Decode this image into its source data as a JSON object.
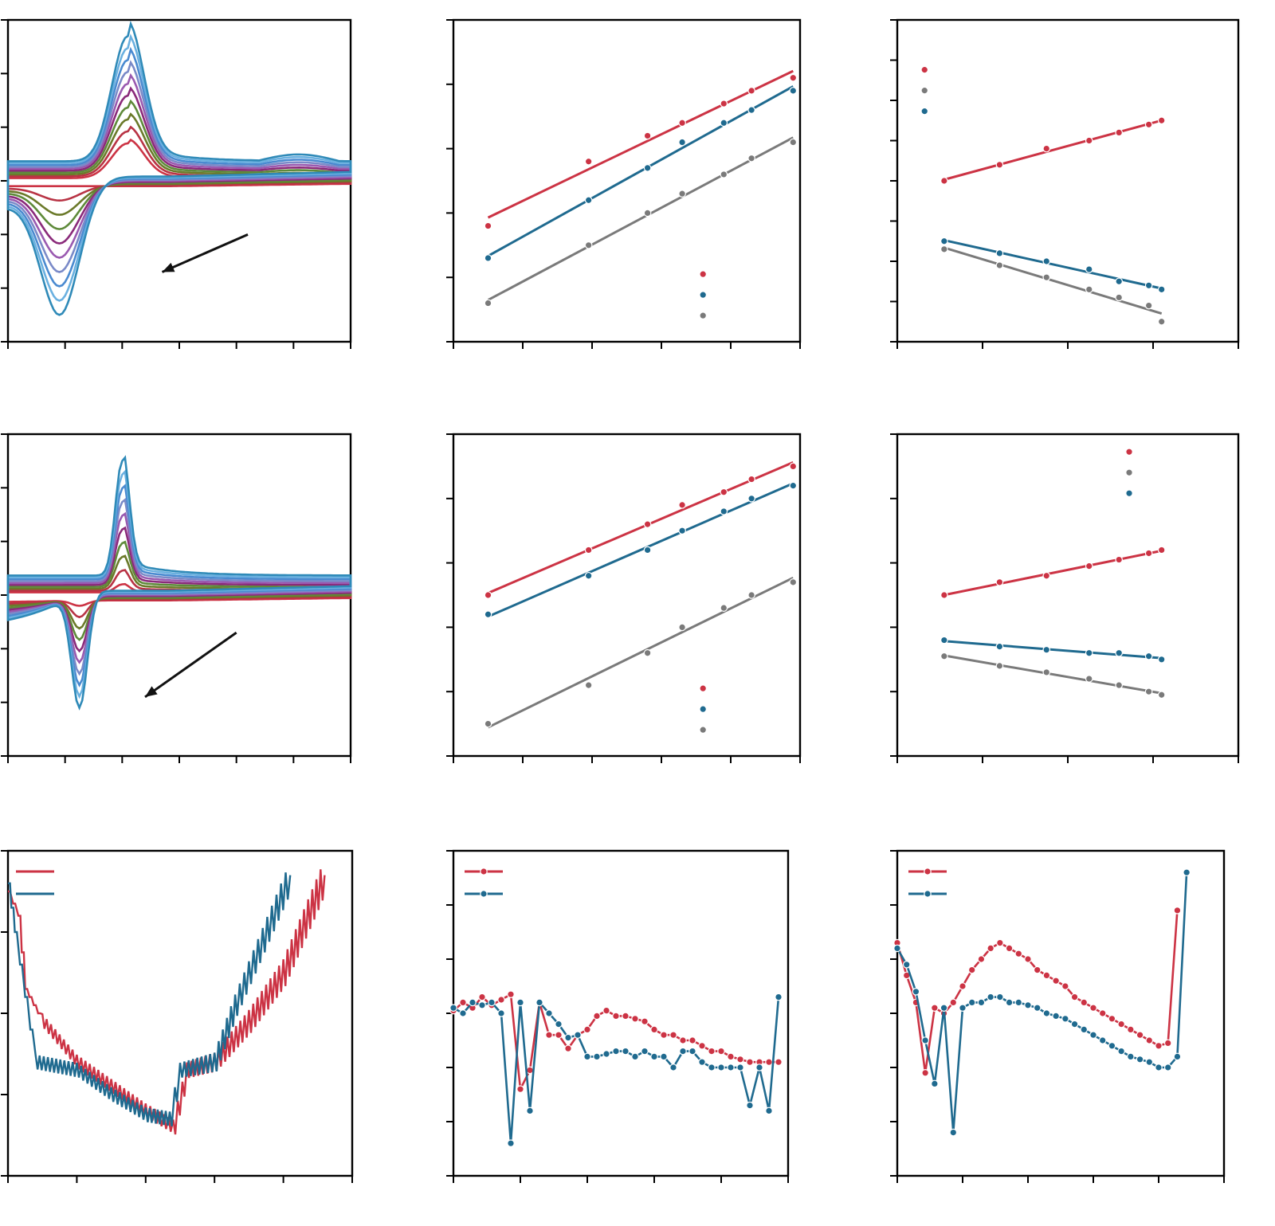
{
  "colors": {
    "red": "#cc3344",
    "blue": "#1f6a8f",
    "gray": "#7a7a7a",
    "arrow": "#111111",
    "cv_ramp": [
      "#cc3344",
      "#b83344",
      "#6b7a2a",
      "#5e8a3a",
      "#8a2a7a",
      "#9a5ab0",
      "#7a8ac8",
      "#4a8ad0",
      "#6ab0e0",
      "#2f8ab8"
    ]
  },
  "chart_data": [
    {
      "type": "line",
      "id": "cv-top",
      "xlim": [
        0,
        6
      ],
      "ylim": [
        0,
        6
      ],
      "scan_count": 10,
      "peak_anodic": {
        "x": 2.1,
        "y_min": 3.7,
        "y_max": 5.7
      },
      "peak_cathodic": {
        "x": 0.9,
        "y_min": 2.9,
        "y_max": 0.5
      },
      "arrow": {
        "from": [
          4.2,
          2.0
        ],
        "to": [
          2.7,
          1.3
        ]
      }
    },
    {
      "type": "scatter",
      "id": "linear-top-mid",
      "xlim": [
        0,
        5
      ],
      "ylim": [
        0,
        5
      ],
      "series": [
        {
          "color_key": "red",
          "x": [
            0.5,
            1.95,
            2.8,
            3.3,
            3.9,
            4.3,
            4.9
          ],
          "y": [
            1.8,
            2.8,
            3.2,
            3.4,
            3.7,
            3.9,
            4.1
          ]
        },
        {
          "color_key": "blue",
          "x": [
            0.5,
            1.95,
            2.8,
            3.3,
            3.9,
            4.3,
            4.9
          ],
          "y": [
            1.3,
            2.2,
            2.7,
            3.1,
            3.4,
            3.6,
            3.9
          ]
        },
        {
          "color_key": "gray",
          "x": [
            0.5,
            1.95,
            2.8,
            3.3,
            3.9,
            4.3,
            4.9
          ],
          "y": [
            0.6,
            1.5,
            2.0,
            2.3,
            2.6,
            2.85,
            3.1
          ]
        }
      ],
      "legend_markers": [
        "red",
        "blue",
        "gray"
      ],
      "legend_position": "bottom-right"
    },
    {
      "type": "scatter",
      "id": "linear-top-right",
      "xlim": [
        0,
        4
      ],
      "ylim": [
        0,
        8
      ],
      "series": [
        {
          "color_key": "red",
          "x": [
            0.55,
            1.2,
            1.75,
            2.25,
            2.6,
            2.95,
            3.1
          ],
          "y": [
            4.0,
            4.4,
            4.8,
            5.0,
            5.2,
            5.4,
            5.5
          ]
        },
        {
          "color_key": "blue",
          "x": [
            0.55,
            1.2,
            1.75,
            2.25,
            2.6,
            2.95,
            3.1
          ],
          "y": [
            2.5,
            2.2,
            2.0,
            1.8,
            1.5,
            1.4,
            1.3
          ]
        },
        {
          "color_key": "gray",
          "x": [
            0.55,
            1.2,
            1.75,
            2.25,
            2.6,
            2.95,
            3.1
          ],
          "y": [
            2.3,
            1.9,
            1.6,
            1.3,
            1.1,
            0.9,
            0.5
          ]
        }
      ],
      "legend_markers": [
        "red",
        "gray",
        "blue"
      ],
      "legend_position": "top-left"
    },
    {
      "type": "line",
      "id": "cv-middle",
      "xlim": [
        0,
        6
      ],
      "ylim": [
        0,
        6
      ],
      "scan_count": 10,
      "peak_anodic": {
        "x": 2.0,
        "y_min": 3.2,
        "y_max": 5.5
      },
      "peak_cathodic": {
        "x": 1.25,
        "y_min": 2.8,
        "y_max": 0.9
      },
      "arrow": {
        "from": [
          4.0,
          2.3
        ],
        "to": [
          2.4,
          1.1
        ]
      }
    },
    {
      "type": "scatter",
      "id": "linear-mid-mid",
      "xlim": [
        0,
        5
      ],
      "ylim": [
        0,
        5
      ],
      "series": [
        {
          "color_key": "red",
          "x": [
            0.5,
            1.95,
            2.8,
            3.3,
            3.9,
            4.3,
            4.9
          ],
          "y": [
            2.5,
            3.2,
            3.6,
            3.9,
            4.1,
            4.3,
            4.5
          ]
        },
        {
          "color_key": "blue",
          "x": [
            0.5,
            1.95,
            2.8,
            3.3,
            3.9,
            4.3,
            4.9
          ],
          "y": [
            2.2,
            2.8,
            3.2,
            3.5,
            3.8,
            4.0,
            4.2
          ]
        },
        {
          "color_key": "gray",
          "x": [
            0.5,
            1.95,
            2.8,
            3.3,
            3.9,
            4.3,
            4.9
          ],
          "y": [
            0.5,
            1.1,
            1.6,
            2.0,
            2.3,
            2.5,
            2.7
          ]
        }
      ],
      "legend_markers": [
        "red",
        "blue",
        "gray"
      ],
      "legend_position": "bottom-right"
    },
    {
      "type": "scatter",
      "id": "linear-mid-right",
      "xlim": [
        0,
        4
      ],
      "ylim": [
        0,
        5
      ],
      "series": [
        {
          "color_key": "red",
          "x": [
            0.55,
            1.2,
            1.75,
            2.25,
            2.6,
            2.95,
            3.1
          ],
          "y": [
            2.5,
            2.7,
            2.8,
            2.95,
            3.05,
            3.15,
            3.2
          ]
        },
        {
          "color_key": "blue",
          "x": [
            0.55,
            1.2,
            1.75,
            2.25,
            2.6,
            2.95,
            3.1
          ],
          "y": [
            1.8,
            1.7,
            1.65,
            1.6,
            1.6,
            1.55,
            1.5
          ]
        },
        {
          "color_key": "gray",
          "x": [
            0.55,
            1.2,
            1.75,
            2.25,
            2.6,
            2.95,
            3.1
          ],
          "y": [
            1.55,
            1.4,
            1.3,
            1.2,
            1.1,
            1.0,
            0.95
          ]
        }
      ],
      "legend_markers": [
        "red",
        "gray",
        "blue"
      ],
      "legend_position": "top-right"
    },
    {
      "type": "line",
      "id": "sawtooth-bottom-left",
      "xlim": [
        0,
        5
      ],
      "ylim": [
        0,
        4
      ],
      "series": [
        {
          "color_key": "red",
          "x": [
            0.0,
            0.15,
            0.25,
            0.5,
            1.0,
            1.5,
            2.0,
            2.4,
            2.6,
            3.0,
            3.5,
            4.0,
            4.6
          ],
          "y": [
            3.5,
            3.2,
            2.3,
            1.9,
            1.4,
            1.1,
            0.8,
            0.6,
            1.3,
            1.4,
            1.9,
            2.5,
            3.7
          ]
        },
        {
          "color_key": "blue",
          "x": [
            0.0,
            0.1,
            0.25,
            0.4,
            1.0,
            1.5,
            2.0,
            2.35,
            2.5,
            3.0,
            3.3,
            3.7,
            4.1
          ],
          "y": [
            3.6,
            3.0,
            2.2,
            1.4,
            1.3,
            1.0,
            0.75,
            0.7,
            1.3,
            1.4,
            2.1,
            2.9,
            3.7
          ]
        }
      ],
      "legend_markers": [
        "red",
        "blue"
      ],
      "legend_position": "top-left"
    },
    {
      "type": "line",
      "id": "cycle-bottom-mid",
      "xlim": [
        0,
        35
      ],
      "ylim": [
        0,
        6
      ],
      "series": [
        {
          "color_key": "red",
          "x": [
            0,
            1,
            2,
            3,
            4,
            5,
            6,
            7,
            8,
            9,
            10,
            11,
            12,
            13,
            14,
            15,
            16,
            17,
            18,
            19,
            20,
            21,
            22,
            23,
            24,
            25,
            26,
            27,
            28,
            29,
            30,
            31,
            32,
            33,
            34
          ],
          "y": [
            3.05,
            3.2,
            3.1,
            3.3,
            3.15,
            3.25,
            3.35,
            1.6,
            1.95,
            3.2,
            2.6,
            2.6,
            2.35,
            2.6,
            2.7,
            2.95,
            3.05,
            2.95,
            2.95,
            2.9,
            2.85,
            2.7,
            2.6,
            2.6,
            2.5,
            2.5,
            2.4,
            2.3,
            2.3,
            2.2,
            2.15,
            2.1,
            2.1,
            2.1,
            2.1
          ]
        },
        {
          "color_key": "blue",
          "x": [
            0,
            1,
            2,
            3,
            4,
            5,
            6,
            7,
            8,
            9,
            10,
            11,
            12,
            13,
            14,
            15,
            16,
            17,
            18,
            19,
            20,
            21,
            22,
            23,
            24,
            25,
            26,
            27,
            28,
            29,
            30,
            31,
            32,
            33,
            34
          ],
          "y": [
            3.1,
            3.0,
            3.2,
            3.15,
            3.2,
            3.0,
            0.6,
            3.2,
            1.2,
            3.2,
            3.0,
            2.8,
            2.55,
            2.6,
            2.2,
            2.2,
            2.25,
            2.3,
            2.3,
            2.2,
            2.3,
            2.2,
            2.2,
            2.0,
            2.3,
            2.3,
            2.1,
            2.0,
            2.0,
            2.0,
            2.0,
            1.3,
            2.0,
            1.2,
            3.3
          ]
        }
      ],
      "legend_markers": [
        "red",
        "blue"
      ],
      "legend_position": "top-left"
    },
    {
      "type": "line",
      "id": "cycle-bottom-right",
      "xlim": [
        0,
        35
      ],
      "ylim": [
        0,
        6
      ],
      "series": [
        {
          "color_key": "red",
          "x": [
            0,
            1,
            2,
            3,
            4,
            5,
            6,
            7,
            8,
            9,
            10,
            11,
            12,
            13,
            14,
            15,
            16,
            17,
            18,
            19,
            20,
            21,
            22,
            23,
            24,
            25,
            26,
            27,
            28,
            29,
            30
          ],
          "y": [
            4.3,
            3.7,
            3.2,
            1.9,
            3.1,
            3.0,
            3.2,
            3.5,
            3.8,
            4.0,
            4.2,
            4.3,
            4.2,
            4.1,
            4.0,
            3.8,
            3.7,
            3.6,
            3.5,
            3.3,
            3.2,
            3.1,
            3.0,
            2.9,
            2.8,
            2.7,
            2.6,
            2.5,
            2.4,
            2.45,
            4.9
          ]
        },
        {
          "color_key": "blue",
          "x": [
            0,
            1,
            2,
            3,
            4,
            5,
            6,
            7,
            8,
            9,
            10,
            11,
            12,
            13,
            14,
            15,
            16,
            17,
            18,
            19,
            20,
            21,
            22,
            23,
            24,
            25,
            26,
            27,
            28,
            29,
            30,
            31
          ],
          "y": [
            4.2,
            3.9,
            3.4,
            2.5,
            1.7,
            3.1,
            0.8,
            3.1,
            3.2,
            3.2,
            3.3,
            3.3,
            3.2,
            3.2,
            3.15,
            3.1,
            3.0,
            2.95,
            2.9,
            2.8,
            2.7,
            2.6,
            2.5,
            2.4,
            2.3,
            2.2,
            2.15,
            2.1,
            2.0,
            2.0,
            2.2,
            5.6
          ]
        }
      ],
      "legend_markers": [
        "red",
        "blue"
      ],
      "legend_position": "top-left"
    }
  ]
}
